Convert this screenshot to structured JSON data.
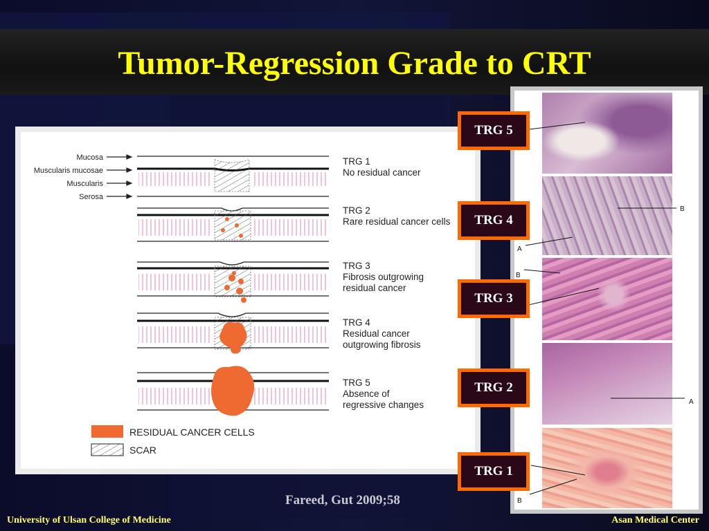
{
  "title": "Tumor-Regression Grade to CRT",
  "diagram": {
    "layer_labels": [
      "Mucosa",
      "Muscularis mucosae",
      "Muscularis",
      "Serosa"
    ],
    "grades": [
      {
        "grade": "TRG 1",
        "desc": [
          "No residual cancer"
        ]
      },
      {
        "grade": "TRG 2",
        "desc": [
          "Rare residual cancer cells"
        ]
      },
      {
        "grade": "TRG 3",
        "desc": [
          "Fibrosis outgrowing",
          "residual cancer"
        ]
      },
      {
        "grade": "TRG 4",
        "desc": [
          "Residual cancer",
          "outgrowing fibrosis"
        ]
      },
      {
        "grade": "TRG 5",
        "desc": [
          "Absence of",
          "regressive changes"
        ]
      }
    ],
    "legend": {
      "residual": "RESIDUAL CANCER CELLS",
      "scar": "SCAR"
    }
  },
  "photo_labels": [
    "TRG 5",
    "TRG 4",
    "TRG 3",
    "TRG 2",
    "TRG 1"
  ],
  "photo_annotations": {
    "a": "A",
    "b": "B"
  },
  "citation": "Fareed, Gut 2009;58",
  "footer": {
    "left": "University of Ulsan College of Medicine",
    "right": "Asan Medical Center"
  },
  "colors": {
    "title": "#ffff00",
    "tumor": "#ee6a30",
    "label_border": "#ff6a00",
    "label_fill": "#2a0818",
    "footer": "#ffff66"
  }
}
